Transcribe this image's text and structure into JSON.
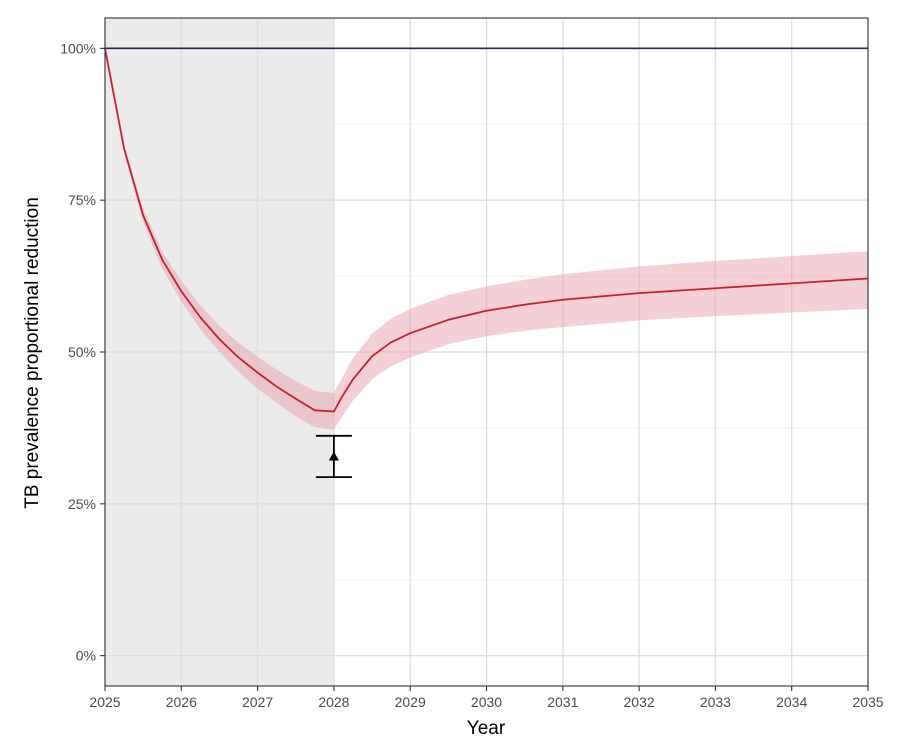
{
  "chart_data": {
    "type": "line",
    "title": "",
    "xlabel": "Year",
    "ylabel": "TB prevalence proportional reduction",
    "xlim": [
      2025,
      2035
    ],
    "ylim": [
      -0.05,
      1.05
    ],
    "x_ticks": [
      2025,
      2026,
      2027,
      2028,
      2029,
      2030,
      2031,
      2032,
      2033,
      2034,
      2035
    ],
    "x_tick_labels": [
      "2025",
      "2026",
      "2027",
      "2028",
      "2029",
      "2030",
      "2031",
      "2032",
      "2033",
      "2034",
      "2035"
    ],
    "y_ticks": [
      0,
      0.25,
      0.5,
      0.75,
      1.0
    ],
    "y_tick_labels": [
      "0%",
      "25%",
      "50%",
      "75%",
      "100%"
    ],
    "grid": true,
    "legend": "none",
    "shaded_region": {
      "x_start": 2025,
      "x_end": 2028,
      "color": "#ebebeb"
    },
    "series": [
      {
        "type": "reference-line",
        "color": "#1b2a5a",
        "x": [
          2025,
          2035
        ],
        "y": [
          1.0,
          1.0
        ]
      },
      {
        "type": "line-with-ribbon",
        "color": "#c8202f",
        "ribbon_color": "#e8a2ad",
        "x": [
          2025,
          2025.25,
          2025.5,
          2025.75,
          2026,
          2026.25,
          2026.5,
          2026.75,
          2027,
          2027.25,
          2027.5,
          2027.75,
          2028,
          2028.1,
          2028.25,
          2028.5,
          2028.75,
          2029,
          2029.5,
          2030,
          2030.5,
          2031,
          2032,
          2033,
          2034,
          2035
        ],
        "y": [
          1.0,
          0.835,
          0.725,
          0.652,
          0.6,
          0.557,
          0.521,
          0.491,
          0.466,
          0.443,
          0.423,
          0.404,
          0.402,
          0.425,
          0.455,
          0.493,
          0.516,
          0.531,
          0.553,
          0.568,
          0.578,
          0.586,
          0.597,
          0.605,
          0.613,
          0.621
        ],
        "lower": [
          1.0,
          0.828,
          0.714,
          0.637,
          0.583,
          0.537,
          0.5,
          0.467,
          0.44,
          0.416,
          0.394,
          0.376,
          0.372,
          0.392,
          0.42,
          0.455,
          0.477,
          0.491,
          0.513,
          0.526,
          0.535,
          0.541,
          0.552,
          0.559,
          0.565,
          0.571
        ],
        "upper": [
          1.0,
          0.842,
          0.735,
          0.666,
          0.617,
          0.577,
          0.543,
          0.515,
          0.492,
          0.471,
          0.452,
          0.436,
          0.432,
          0.456,
          0.49,
          0.53,
          0.555,
          0.571,
          0.594,
          0.608,
          0.619,
          0.628,
          0.641,
          0.65,
          0.658,
          0.666
        ]
      }
    ],
    "error_bar": {
      "x": 2028,
      "y": 0.328,
      "lower": 0.294,
      "upper": 0.362,
      "marker": "triangle",
      "color": "#000000"
    }
  }
}
